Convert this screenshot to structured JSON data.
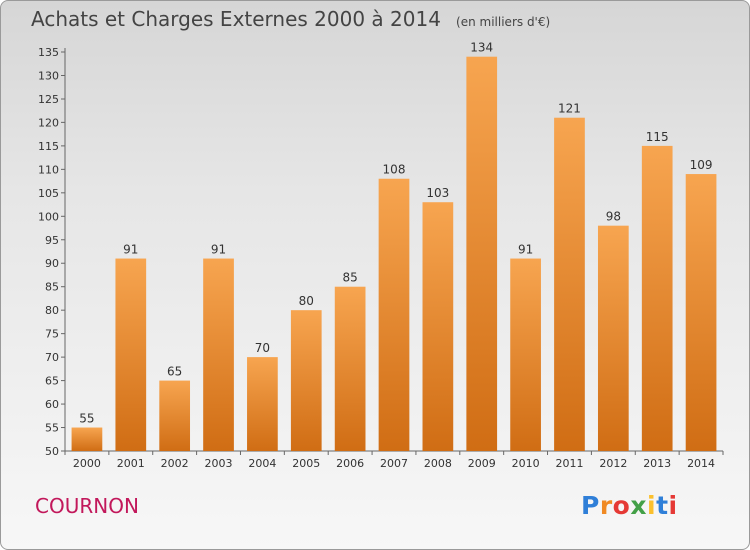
{
  "title": "Achats et Charges Externes 2000 à 2014",
  "subtitle": "(en milliers d'€)",
  "commune": "COURNON",
  "logo": {
    "letters": [
      {
        "ch": "P",
        "color": "#2f7fd8"
      },
      {
        "ch": "r",
        "color": "#f08a24"
      },
      {
        "ch": "o",
        "color": "#e53935"
      },
      {
        "ch": "x",
        "color": "#43a047"
      },
      {
        "ch": "i",
        "color": "#fbc02d"
      },
      {
        "ch": "t",
        "color": "#2f7fd8"
      },
      {
        "ch": "i",
        "color": "#e53935"
      }
    ]
  },
  "colors": {
    "bar_light": "#f7a550",
    "bar_dark": "#d06d14",
    "commune": "#c2185b"
  },
  "chart_data": {
    "type": "bar",
    "title": "Achats et Charges Externes 2000 à 2014",
    "subtitle": "(en milliers d'€)",
    "categories": [
      "2000",
      "2001",
      "2002",
      "2003",
      "2004",
      "2005",
      "2006",
      "2007",
      "2008",
      "2009",
      "2010",
      "2011",
      "2012",
      "2013",
      "2014"
    ],
    "values": [
      55,
      91,
      65,
      91,
      70,
      80,
      85,
      108,
      103,
      134,
      91,
      121,
      98,
      115,
      109
    ],
    "ylim": [
      50,
      135
    ],
    "yticks": [
      50,
      55,
      60,
      65,
      70,
      75,
      80,
      85,
      90,
      95,
      100,
      105,
      110,
      115,
      120,
      125,
      130,
      135
    ],
    "grid": false,
    "data_labels": true
  }
}
